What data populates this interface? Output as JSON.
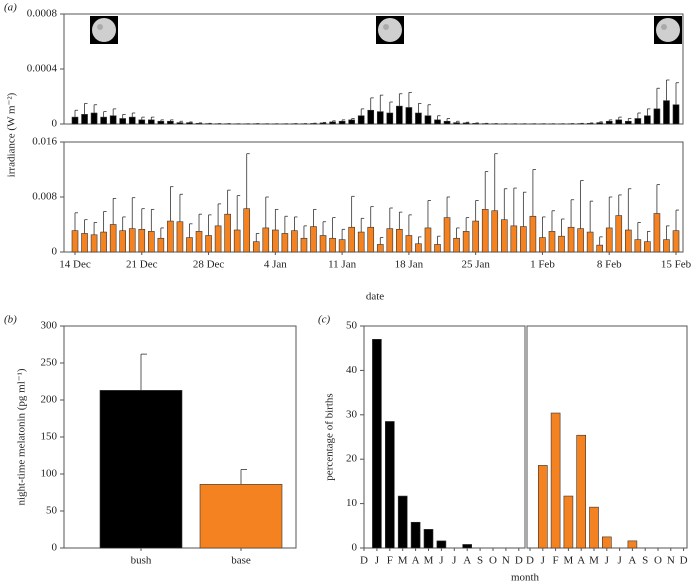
{
  "panel_labels": [
    "(a)",
    "(b)",
    "(c)"
  ],
  "chart_data": [
    {
      "type": "bar",
      "y_label": "irradiance (W m⁻²)",
      "color": "#000000",
      "ylim": [
        0,
        0.0008
      ],
      "yticks": [
        0,
        0.0004,
        0.0008
      ],
      "values": [
        5e-05,
        7e-05,
        8e-05,
        5e-05,
        6e-05,
        4e-05,
        5e-05,
        3e-05,
        3e-05,
        2e-05,
        2e-05,
        1e-05,
        1e-05,
        5e-06,
        3e-06,
        2e-06,
        2e-06,
        1e-06,
        1e-06,
        2e-06,
        1e-06,
        1e-06,
        1e-06,
        2e-06,
        2e-06,
        4e-06,
        8e-06,
        1.5e-05,
        2e-05,
        3e-05,
        6e-05,
        0.0001,
        9e-05,
        8e-05,
        0.00013,
        0.00012,
        8e-05,
        6e-05,
        3e-05,
        2e-05,
        1e-05,
        8e-06,
        5e-06,
        3e-06,
        2e-06,
        1e-06,
        1e-06,
        1e-06,
        1e-06,
        1e-06,
        1e-06,
        1e-06,
        2e-06,
        3e-06,
        5e-06,
        1e-05,
        2e-05,
        3e-05,
        2e-05,
        4e-05,
        6e-05,
        0.00011,
        0.00017,
        0.00014
      ],
      "errors": [
        5e-05,
        8e-05,
        6e-05,
        4e-05,
        5e-05,
        3e-05,
        3e-05,
        2e-05,
        2e-05,
        1e-05,
        1e-05,
        1e-05,
        5e-06,
        3e-06,
        2e-06,
        1e-06,
        1e-06,
        1e-06,
        1e-06,
        1e-06,
        1e-06,
        1e-06,
        1e-06,
        1e-06,
        1e-06,
        2e-06,
        4e-06,
        8e-06,
        1e-05,
        1e-05,
        5e-05,
        9e-05,
        0.00012,
        8e-05,
        9e-05,
        0.00011,
        7e-05,
        8e-05,
        3e-05,
        2e-05,
        1e-05,
        5e-06,
        3e-06,
        2e-06,
        1e-06,
        1e-06,
        1e-06,
        1e-06,
        1e-06,
        1e-06,
        1e-06,
        1e-06,
        1e-06,
        2e-06,
        3e-06,
        6e-06,
        1e-05,
        2e-05,
        2e-05,
        4e-05,
        5e-05,
        0.00015,
        0.00015,
        0.00016
      ]
    },
    {
      "type": "bar",
      "x_label": "date",
      "color": "#f58220",
      "ylim": [
        0,
        0.016
      ],
      "yticks": [
        0,
        0.008,
        0.016
      ],
      "categories": [
        "14 Dec",
        null,
        null,
        null,
        null,
        null,
        null,
        "21 Dec",
        null,
        null,
        null,
        null,
        null,
        null,
        "28 Dec",
        null,
        null,
        null,
        null,
        null,
        null,
        "4 Jan",
        null,
        null,
        null,
        null,
        null,
        null,
        "11 Jan",
        null,
        null,
        null,
        null,
        null,
        null,
        "18 Jan",
        null,
        null,
        null,
        null,
        null,
        null,
        "25 Jan",
        null,
        null,
        null,
        null,
        null,
        null,
        "1 Feb",
        null,
        null,
        null,
        null,
        null,
        null,
        "8 Feb",
        null,
        null,
        null,
        null,
        null,
        null,
        "15 Feb"
      ],
      "values": [
        0.0031,
        0.0027,
        0.0025,
        0.0029,
        0.004,
        0.0031,
        0.0034,
        0.0033,
        0.003,
        0.002,
        0.0045,
        0.0044,
        0.0021,
        0.003,
        0.0024,
        0.0038,
        0.0055,
        0.0032,
        0.0063,
        0.0015,
        0.0035,
        0.0032,
        0.0027,
        0.0031,
        0.002,
        0.0037,
        0.0024,
        0.002,
        0.0018,
        0.0036,
        0.0029,
        0.0036,
        0.0011,
        0.0034,
        0.0033,
        0.0024,
        0.0012,
        0.0035,
        0.0011,
        0.005,
        0.002,
        0.003,
        0.0045,
        0.0062,
        0.006,
        0.0047,
        0.0038,
        0.0037,
        0.0052,
        0.0021,
        0.003,
        0.0023,
        0.0036,
        0.0034,
        0.0029,
        0.001,
        0.0035,
        0.0053,
        0.0032,
        0.0018,
        0.0015,
        0.0056,
        0.0018,
        0.0031
      ],
      "errors": [
        0.0026,
        0.002,
        0.0018,
        0.003,
        0.0038,
        0.002,
        0.0045,
        0.003,
        0.0032,
        0.0015,
        0.005,
        0.004,
        0.002,
        0.0025,
        0.003,
        0.0032,
        0.0035,
        0.005,
        0.008,
        0.0012,
        0.0045,
        0.003,
        0.0025,
        0.002,
        0.0018,
        0.0025,
        0.002,
        0.003,
        0.0015,
        0.0045,
        0.002,
        0.003,
        0.001,
        0.003,
        0.0025,
        0.003,
        0.001,
        0.004,
        0.0012,
        0.003,
        0.0015,
        0.002,
        0.003,
        0.0055,
        0.0083,
        0.0045,
        0.0055,
        0.005,
        0.0068,
        0.003,
        0.003,
        0.0025,
        0.004,
        0.007,
        0.0045,
        0.0012,
        0.0045,
        0.003,
        0.006,
        0.0025,
        0.0015,
        0.0042,
        0.002,
        0.003
      ]
    },
    {
      "type": "bar",
      "y_label": "night-time melatonin (pg ml⁻¹)",
      "categories": [
        "bush",
        "base"
      ],
      "values": [
        213,
        86
      ],
      "errors": [
        49,
        20
      ],
      "colors": [
        "#000000",
        "#f58220"
      ],
      "ylim": [
        0,
        300
      ],
      "yticks": [
        0,
        50,
        100,
        150,
        200,
        250,
        300
      ]
    },
    {
      "type": "bar",
      "y_label": "percentage of births",
      "x_label": "month",
      "color": "#000000",
      "categories": [
        "D",
        "J",
        "F",
        "M",
        "A",
        "M",
        "J",
        "J",
        "A",
        "S",
        "O",
        "N",
        "D"
      ],
      "values": [
        0,
        47,
        28.5,
        11.7,
        5.8,
        4.2,
        1.6,
        0,
        0.8,
        0,
        0,
        0,
        0
      ],
      "ylim": [
        0,
        50
      ],
      "yticks": [
        0,
        10,
        20,
        30,
        40,
        50
      ]
    },
    {
      "type": "bar",
      "color": "#f58220",
      "categories": [
        "D",
        "J",
        "F",
        "M",
        "A",
        "M",
        "J",
        "J",
        "A",
        "S",
        "O",
        "N",
        "D"
      ],
      "values": [
        0,
        18.6,
        30.4,
        11.7,
        25.4,
        9.2,
        2.5,
        0,
        1.6,
        0,
        0,
        0,
        0
      ],
      "ylim": [
        0,
        50
      ]
    }
  ]
}
